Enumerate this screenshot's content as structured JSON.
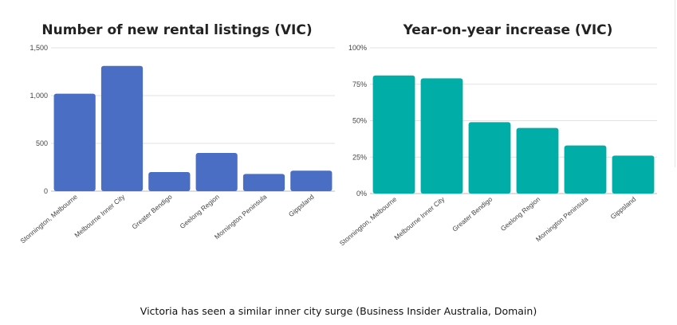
{
  "chart_data": [
    {
      "type": "bar",
      "title": "Number of new rental listings (VIC)",
      "categories": [
        "Stonnington, Melbourne",
        "Melbourne Inner City",
        "Greater Bendigo",
        "Geelong Region",
        "Mornington Peninsula",
        "Gippsland"
      ],
      "values": [
        1020,
        1310,
        200,
        400,
        180,
        215
      ],
      "ylim": [
        0,
        1500
      ],
      "yticks": [
        0,
        500,
        1000,
        1500
      ],
      "ytick_labels": [
        "0",
        "500",
        "1,000",
        "1,500"
      ],
      "grid": true,
      "colors": {
        "bar": "#4a6ec4"
      }
    },
    {
      "type": "bar",
      "title": "Year-on-year increase (VIC)",
      "categories": [
        "Stonnington, Melbourne",
        "Melbourne Inner City",
        "Greater Bendigo",
        "Geelong Region",
        "Mornington Peninsula",
        "Gippsland"
      ],
      "values": [
        81,
        79,
        49,
        45,
        33,
        26
      ],
      "ylim": [
        0,
        100
      ],
      "yticks": [
        0,
        25,
        50,
        75,
        100
      ],
      "ytick_labels": [
        "0%",
        "25%",
        "50%",
        "75%",
        "100%"
      ],
      "grid": true,
      "colors": {
        "bar": "#00ada7"
      }
    }
  ],
  "caption": "Victoria has seen a similar inner city surge (Business Insider Australia, Domain)"
}
